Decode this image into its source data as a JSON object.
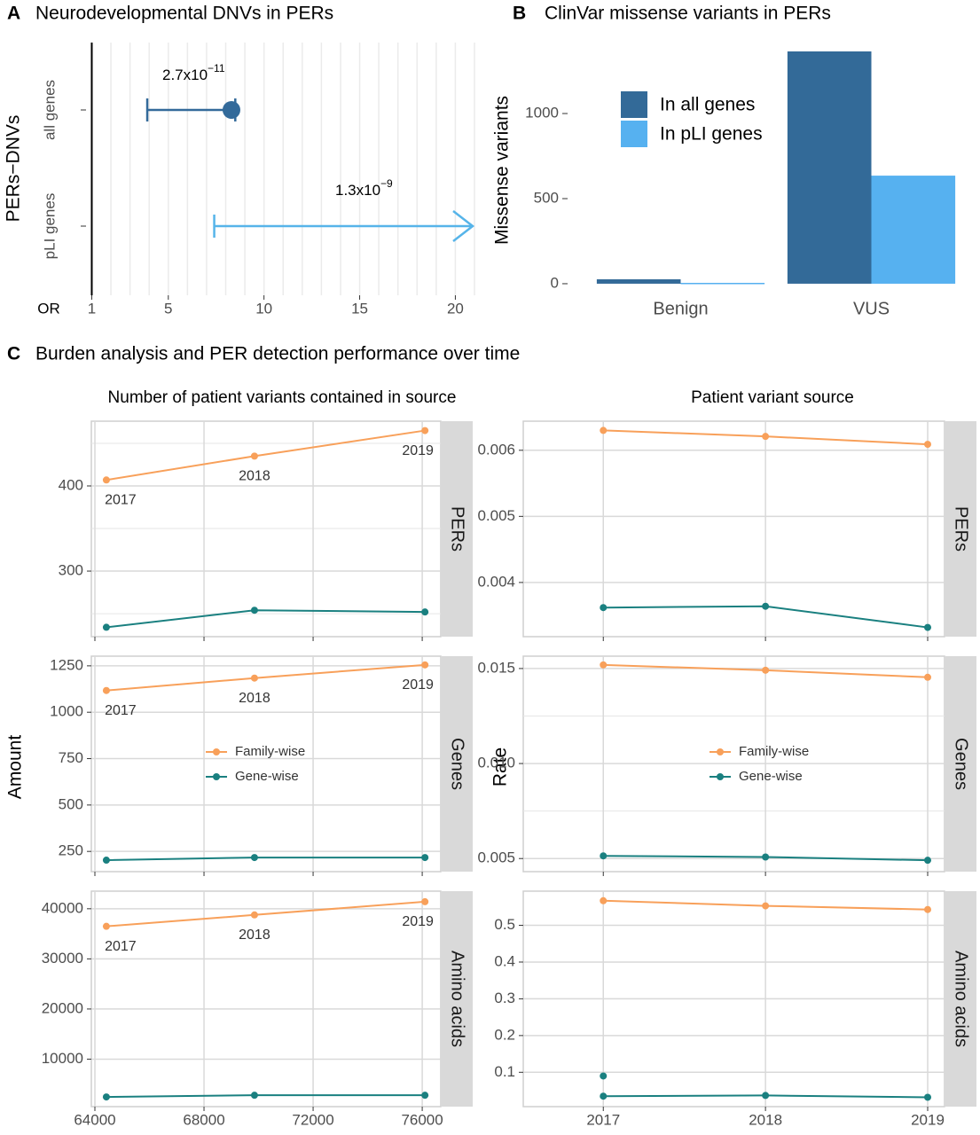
{
  "chart_data": [
    {
      "type": "forest",
      "panel": "A",
      "title": "Neurodevelopmental DNVs in PERs",
      "ylabel": "PERs−DNVs",
      "xlabel": "OR",
      "categories": [
        "all genes",
        "pLI genes"
      ],
      "colors": [
        "#336a9a",
        "#56b4e9"
      ],
      "estimates": [
        8.3,
        null
      ],
      "lower": [
        3.9,
        7.4
      ],
      "upper": [
        8.5,
        null
      ],
      "annotations": [
        {
          "base": "2.7x10",
          "exp": "−11"
        },
        {
          "base": "1.3x10",
          "exp": "−9"
        }
      ],
      "xlim": [
        0.7,
        21
      ],
      "xticks": [
        1,
        5,
        10,
        15,
        20
      ],
      "xminor": [
        2,
        3,
        4,
        6,
        7,
        8,
        9,
        11,
        12,
        13,
        14,
        16,
        17,
        18,
        19,
        21
      ],
      "refline": 1
    },
    {
      "type": "bar",
      "panel": "B",
      "title": "ClinVar missense variants in PERs",
      "ylabel": "Missense variants",
      "categories": [
        "Benign",
        "VUS"
      ],
      "series": [
        {
          "name": "In all genes",
          "color": "#336a98",
          "values": [
            26,
            1365
          ]
        },
        {
          "name": "In pLI genes",
          "color": "#56b1f0",
          "values": [
            5,
            635
          ]
        }
      ],
      "ylim": [
        -68,
        1417
      ],
      "yticks": [
        0,
        500,
        1000
      ],
      "legend": "top-left"
    },
    {
      "type": "facet-line",
      "panel": "C",
      "title": "Burden analysis and PER detection performance over time",
      "series": [
        {
          "name": "Family-wise",
          "color": "#f8a05a"
        },
        {
          "name": "Gene-wise",
          "color": "#1a8080"
        }
      ],
      "columns": [
        {
          "title": "Number of patient variants contained in source",
          "ylabel": "Amount",
          "x": [
            64420,
            69850,
            76100
          ],
          "xlim": [
            63870,
            76680
          ],
          "xticks": [
            64000,
            68000,
            72000,
            76000
          ],
          "point_labels": [
            "2017",
            "2018",
            "2019"
          ],
          "facets": [
            {
              "strip": "PERs",
              "ylim": [
                223,
                476
              ],
              "yticks": [
                300,
                400
              ],
              "yminor": [
                250,
                350,
                450
              ],
              "values": [
                [
                  407,
                  435,
                  465
                ],
                [
                  234,
                  254,
                  252
                ]
              ]
            },
            {
              "strip": "Genes",
              "ylim": [
                141,
                1302
              ],
              "yticks": [
                250,
                500,
                750,
                1000,
                1250
              ],
              "legend": true,
              "values": [
                [
                  1117,
                  1184,
                  1255
                ],
                [
                  203,
                  217,
                  217
                ]
              ]
            },
            {
              "strip": "Amino acids",
              "ylim": [
                526,
                43509
              ],
              "yticks": [
                10000,
                20000,
                30000,
                40000
              ],
              "values": [
                [
                  36490,
                  38770,
                  41400
                ],
                [
                  2460,
                  2800,
                  2800
                ]
              ]
            }
          ]
        },
        {
          "title": "Patient variant source",
          "ylabel": "Rate",
          "categories": [
            "2017",
            "2018",
            "2019"
          ],
          "facets": [
            {
              "strip": "PERs",
              "ylim": [
                0.00318,
                0.00644
              ],
              "yticks": [
                0.004,
                0.005,
                0.006
              ],
              "values": [
                [
                  0.0063,
                  0.00621,
                  0.00609
                ],
                [
                  0.00362,
                  0.00364,
                  0.00332
                ]
              ]
            },
            {
              "strip": "Genes",
              "ylim": [
                0.00431,
                0.01565
              ],
              "yticks": [
                0.005,
                {
                  "value": 0.01,
                  "label": "0.010"
                },
                0.015
              ],
              "yminor": [
                0.0075,
                0.0125
              ],
              "legend": true,
              "values": [
                [
                  0.01519,
                  0.01491,
                  0.01454
                ],
                [
                  0.00514,
                  0.00508,
                  0.00491
                ]
              ]
            },
            {
              "strip": "Amino acids",
              "ylim": [
                0.0066,
                0.593
              ],
              "yticks": [
                0.1,
                0.2,
                0.3,
                0.4,
                0.5
              ],
              "values": [
                [
                  0.567,
                  0.553,
                  0.543
                ],
                [
                  0.035,
                  0.037,
                  0.032
                ]
              ],
              "extra_values": [
                [
                  null,
                  null,
                  null
                ],
                [
                  0.09,
                  null,
                  null
                ]
              ]
            }
          ]
        }
      ]
    }
  ]
}
